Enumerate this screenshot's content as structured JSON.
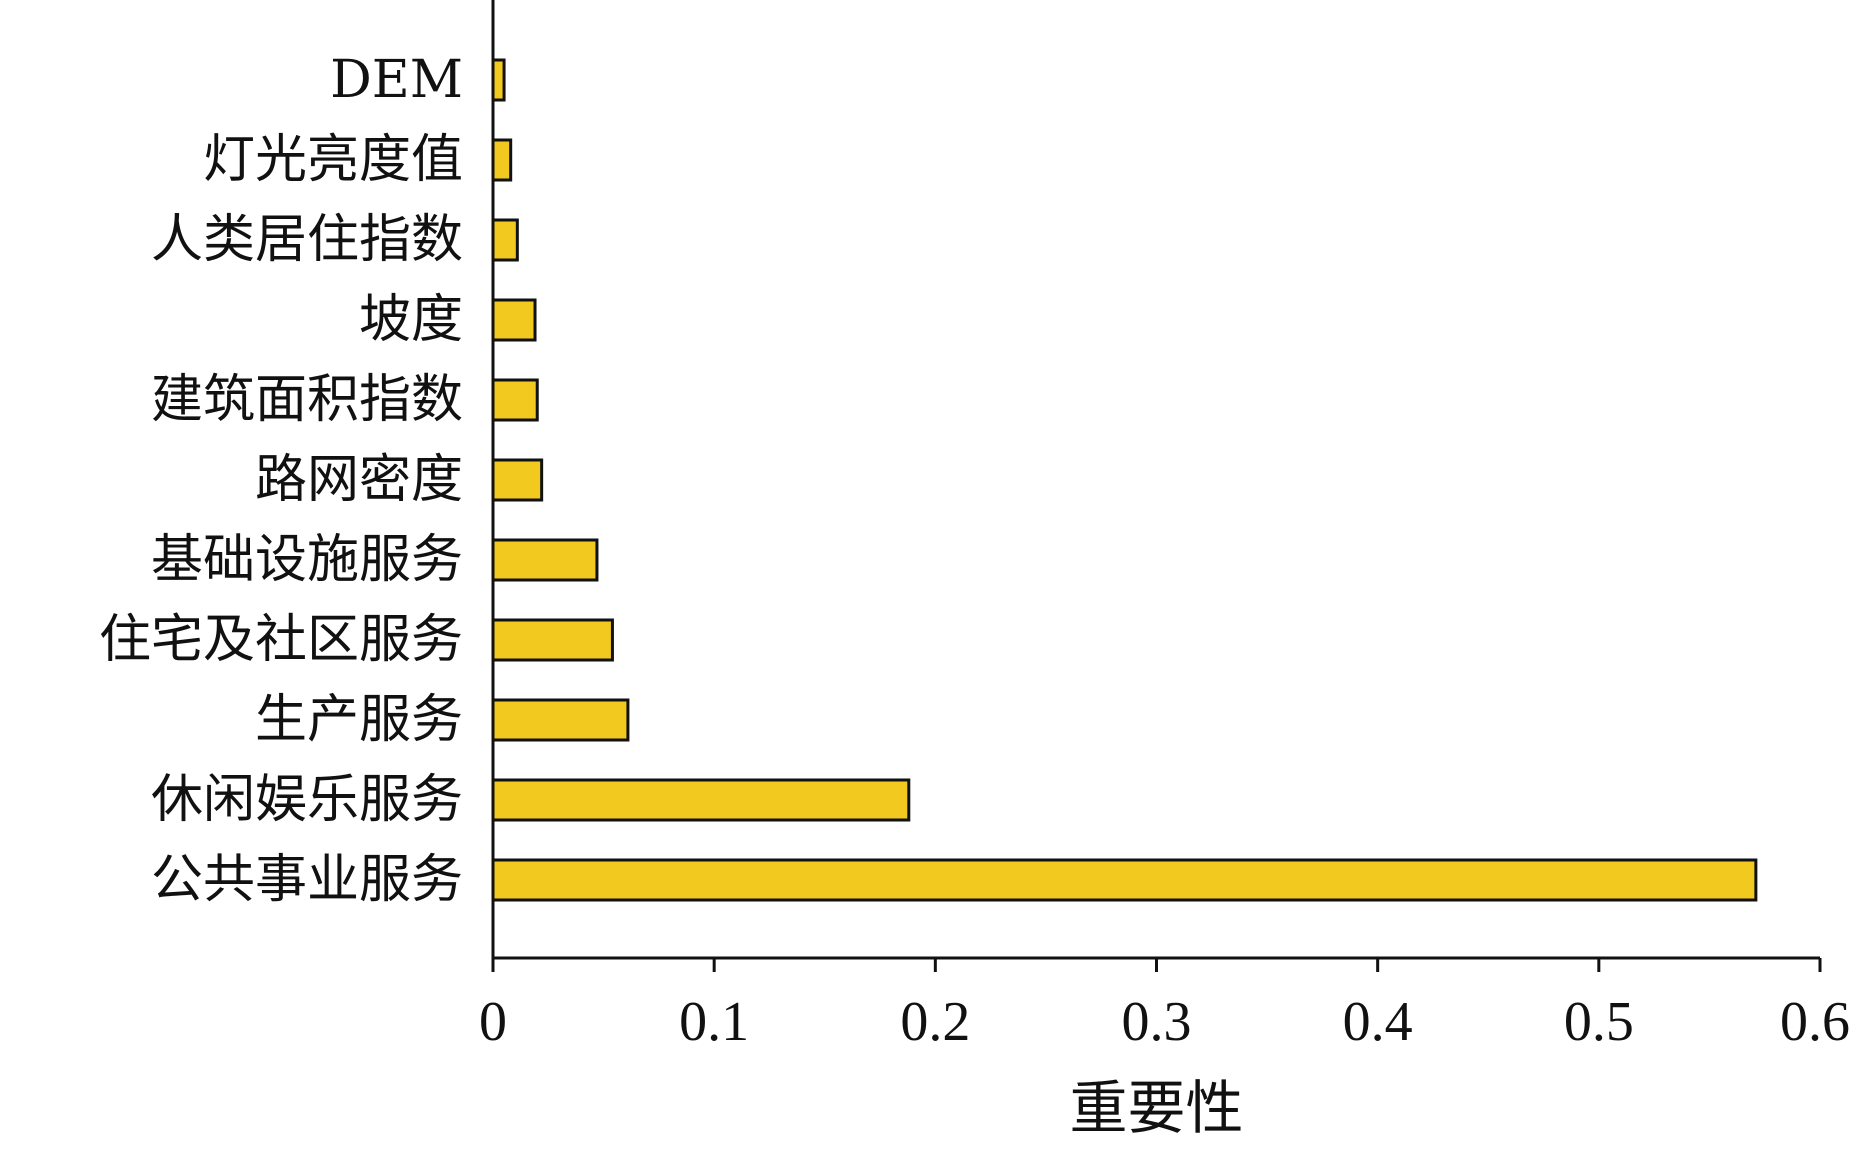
{
  "chart_data": {
    "type": "bar",
    "orientation": "horizontal",
    "categories": [
      "DEM",
      "灯光亮度值",
      "人类居住指数",
      "坡度",
      "建筑面积指数",
      "路网密度",
      "基础设施服务",
      "住宅及社区服务",
      "生产服务",
      "休闲娱乐服务",
      "公共事业服务"
    ],
    "values": [
      0.005,
      0.008,
      0.011,
      0.019,
      0.02,
      0.022,
      0.047,
      0.054,
      0.061,
      0.188,
      0.571
    ],
    "xlabel": "重要性",
    "ylabel": "",
    "title": "",
    "xlim": [
      0,
      0.6
    ],
    "xticks": [
      "0",
      "0.1",
      "0.2",
      "0.3",
      "0.4",
      "0.5",
      "0.6"
    ],
    "grid": false,
    "legend": "none",
    "bar_color": "#f2c91e",
    "edge_color": "#111111"
  }
}
